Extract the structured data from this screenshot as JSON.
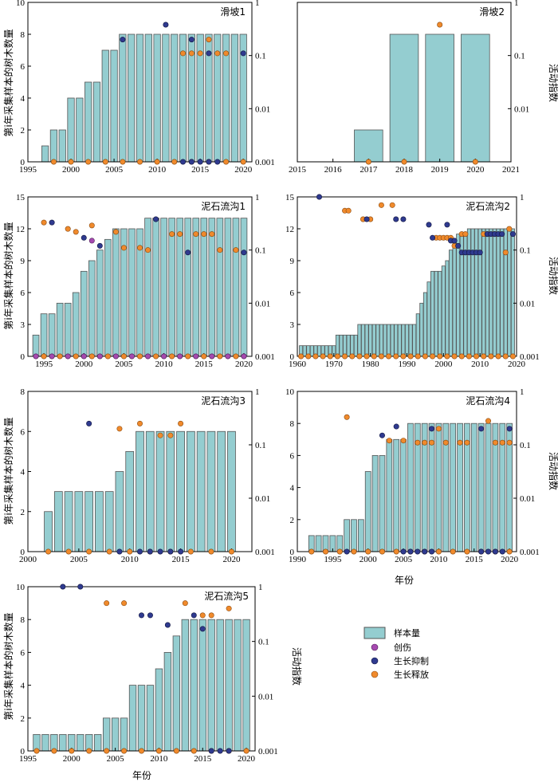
{
  "figure": {
    "y_left_label": "第i年采集样本的树木数量",
    "y_right_label": "活动指数",
    "x_label": "年份",
    "legend": {
      "sample_label": "样本量",
      "injury_label": "创伤",
      "suppression_label": "生长抑制",
      "release_label": "生长释放"
    },
    "colors": {
      "bar_fill": "#94cdd0",
      "bar_stroke": "#555555",
      "injury": "#a64ab0",
      "suppression": "#2f3a8f",
      "release": "#f08a2c"
    }
  },
  "chart_data": [
    {
      "type": "bar",
      "title": "滑坡1",
      "xlim": [
        1995,
        2021
      ],
      "xticks": [
        1995,
        2000,
        2005,
        2010,
        2015,
        2020
      ],
      "ylim": [
        0,
        10
      ],
      "yticks": [
        0,
        2,
        4,
        6,
        8,
        10
      ],
      "y2_log": [
        0.001,
        1
      ],
      "y2ticks": [
        "0.001",
        "0.01",
        "0.1",
        "1"
      ],
      "bar_x": [
        1997,
        1998,
        1999,
        2000,
        2001,
        2002,
        2003,
        2004,
        2005,
        2006,
        2007,
        2008,
        2009,
        2010,
        2011,
        2012,
        2013,
        2014,
        2015,
        2016,
        2017,
        2018,
        2019,
        2020
      ],
      "bar_values": [
        1,
        2,
        2,
        4,
        4,
        5,
        5,
        7,
        7,
        8,
        8,
        8,
        8,
        8,
        8,
        8,
        8,
        8,
        8,
        8,
        8,
        8,
        8,
        8
      ],
      "suppression": [
        [
          2006,
          0.2
        ],
        [
          2011,
          0.38
        ],
        [
          2014,
          0.2
        ],
        [
          2016,
          0.11
        ],
        [
          2020,
          0.11
        ]
      ],
      "release": [
        [
          2013,
          0.11
        ],
        [
          2014,
          0.11
        ],
        [
          2015,
          0.11
        ],
        [
          2016,
          0.2
        ],
        [
          2017,
          0.11
        ],
        [
          2018,
          0.11
        ]
      ],
      "baseline": {
        "release": [
          1998,
          2000,
          2002,
          2004,
          2006,
          2008,
          2010,
          2012,
          2014,
          2016,
          2018,
          2020
        ],
        "suppression": [
          2013,
          2014,
          2015,
          2016,
          2017
        ]
      }
    },
    {
      "type": "bar",
      "title": "滑坡2",
      "xlim": [
        2015,
        2021
      ],
      "xticks": [
        2015,
        2016,
        2017,
        2018,
        2019,
        2020,
        2021
      ],
      "ylim": [
        0,
        10
      ],
      "yticks": [],
      "y2_log": [
        0.001,
        1
      ],
      "y2ticks": [
        "0.01",
        "0.1",
        "1"
      ],
      "bar_x": [
        2017,
        2018,
        2019,
        2020
      ],
      "bar_values": [
        2,
        8,
        8,
        8
      ],
      "suppression": [],
      "release": [
        [
          2019,
          0.38
        ]
      ],
      "baseline": {
        "release": [
          2017,
          2018,
          2020
        ],
        "suppression": []
      }
    },
    {
      "type": "bar",
      "title": "泥石流沟1",
      "xlim": [
        1993,
        2021
      ],
      "xticks": [
        1995,
        2000,
        2005,
        2010,
        2015,
        2020
      ],
      "ylim": [
        0,
        15
      ],
      "yticks": [
        0,
        3,
        6,
        9,
        12,
        15
      ],
      "y2_log": [
        0.001,
        1
      ],
      "y2ticks": [
        "0.001",
        "0.01",
        "0.1",
        "1"
      ],
      "bar_x": [
        1994,
        1995,
        1996,
        1997,
        1998,
        1999,
        2000,
        2001,
        2002,
        2003,
        2004,
        2005,
        2006,
        2007,
        2008,
        2009,
        2010,
        2011,
        2012,
        2013,
        2014,
        2015,
        2016,
        2017,
        2018,
        2019,
        2020
      ],
      "bar_values": [
        2,
        4,
        4,
        5,
        5,
        6,
        8,
        9,
        10,
        11,
        12,
        12,
        12,
        12,
        13,
        13,
        13,
        13,
        13,
        13,
        13,
        13,
        13,
        13,
        13,
        13,
        13
      ],
      "injury": [
        [
          2001,
          0.15
        ]
      ],
      "suppression": [
        [
          1996,
          0.33
        ],
        [
          2000,
          0.17
        ],
        [
          2002,
          0.12
        ],
        [
          2009,
          0.38
        ],
        [
          2013,
          0.09
        ],
        [
          2020,
          0.09
        ]
      ],
      "release": [
        [
          1995,
          0.33
        ],
        [
          1998,
          0.25
        ],
        [
          1999,
          0.22
        ],
        [
          2001,
          0.29
        ],
        [
          2004,
          0.22
        ],
        [
          2005,
          0.11
        ],
        [
          2007,
          0.11
        ],
        [
          2008,
          0.1
        ],
        [
          2011,
          0.2
        ],
        [
          2012,
          0.2
        ],
        [
          2014,
          0.2
        ],
        [
          2015,
          0.2
        ],
        [
          2016,
          0.2
        ],
        [
          2017,
          0.1
        ],
        [
          2019,
          0.1
        ]
      ],
      "baseline": {
        "release": [
          1995,
          1997,
          1999,
          2001,
          2003,
          2005,
          2007,
          2009,
          2011,
          2013,
          2015,
          2017,
          2019
        ],
        "suppression": [],
        "injury": [
          1994,
          1996,
          1998,
          2000,
          2002,
          2004,
          2006,
          2008,
          2010,
          2012,
          2014,
          2016,
          2018,
          2020
        ]
      }
    },
    {
      "type": "bar",
      "title": "泥石流沟2",
      "xlim": [
        1960,
        2020
      ],
      "xticks": [
        1960,
        1970,
        1980,
        1990,
        2000,
        2010,
        2020
      ],
      "ylim": [
        0,
        15
      ],
      "yticks": [
        0,
        3,
        6,
        9,
        12,
        15
      ],
      "y2_log": [
        0.001,
        1
      ],
      "y2ticks": [
        "0.001",
        "0.01",
        "0.1",
        "1"
      ],
      "bar_steps": [
        [
          1961,
          1970,
          1
        ],
        [
          1971,
          1976,
          2
        ],
        [
          1977,
          1992,
          3
        ],
        [
          1993,
          1993,
          4
        ],
        [
          1994,
          1994,
          5
        ],
        [
          1995,
          1995,
          6
        ],
        [
          1996,
          1996,
          7
        ],
        [
          1997,
          1999,
          8
        ],
        [
          2000,
          2000,
          8.5
        ],
        [
          2001,
          2001,
          9
        ],
        [
          2002,
          2002,
          10
        ],
        [
          2003,
          2003,
          11
        ],
        [
          2004,
          2006,
          11.5
        ],
        [
          2007,
          2019,
          12
        ]
      ],
      "suppression": [
        [
          1966,
          1.0
        ],
        [
          1979,
          0.38
        ],
        [
          1987,
          0.38
        ],
        [
          1989,
          0.38
        ],
        [
          1996,
          0.3
        ],
        [
          1997,
          0.17
        ],
        [
          2001,
          0.3
        ],
        [
          2002,
          0.15
        ],
        [
          2003,
          0.15
        ],
        [
          2004,
          0.12
        ],
        [
          2005,
          0.09
        ],
        [
          2006,
          0.09
        ],
        [
          2007,
          0.09
        ],
        [
          2008,
          0.09
        ],
        [
          2009,
          0.09
        ],
        [
          2010,
          0.09
        ],
        [
          2012,
          0.2
        ],
        [
          2013,
          0.2
        ],
        [
          2014,
          0.2
        ],
        [
          2015,
          0.2
        ],
        [
          2016,
          0.2
        ],
        [
          2019,
          0.2
        ]
      ],
      "release": [
        [
          1973,
          0.55
        ],
        [
          1974,
          0.55
        ],
        [
          1978,
          0.38
        ],
        [
          1980,
          0.38
        ],
        [
          1983,
          0.7
        ],
        [
          1986,
          0.7
        ],
        [
          1998,
          0.17
        ],
        [
          1999,
          0.17
        ],
        [
          2000,
          0.17
        ],
        [
          2001,
          0.17
        ],
        [
          2002,
          0.17
        ],
        [
          2003,
          0.12
        ],
        [
          2005,
          0.2
        ],
        [
          2006,
          0.2
        ],
        [
          2011,
          0.2
        ],
        [
          2012,
          0.2
        ],
        [
          2014,
          0.2
        ],
        [
          2017,
          0.09
        ],
        [
          2018,
          0.25
        ]
      ],
      "baseline": {
        "release": [
          1961,
          1963,
          1965,
          1967,
          1969,
          1971,
          1973,
          1975,
          1977,
          1979,
          1981,
          1983,
          1985,
          1987,
          1989,
          1991,
          1993,
          1995,
          1997,
          1999,
          2001,
          2003,
          2005,
          2007,
          2009,
          2011,
          2013,
          2015,
          2017,
          2019
        ],
        "suppression": []
      }
    },
    {
      "type": "bar",
      "title": "泥石流沟3",
      "xlim": [
        2000,
        2022
      ],
      "xticks": [
        2000,
        2005,
        2010,
        2015,
        2020
      ],
      "ylim": [
        0,
        8
      ],
      "yticks": [
        0,
        2,
        4,
        6,
        8
      ],
      "y2_log": [
        0.001,
        1
      ],
      "y2ticks": [
        "0.001",
        "0.01",
        "0.1",
        "1"
      ],
      "bar_x": [
        2002,
        2003,
        2004,
        2005,
        2006,
        2007,
        2008,
        2009,
        2010,
        2011,
        2012,
        2013,
        2014,
        2015,
        2016,
        2017,
        2018,
        2019,
        2020
      ],
      "bar_values": [
        2,
        3,
        3,
        3,
        3,
        3,
        3,
        4,
        5,
        6,
        6,
        6,
        6,
        6,
        6,
        6,
        6,
        6,
        6
      ],
      "suppression": [
        [
          2006,
          0.25
        ]
      ],
      "release": [
        [
          2009,
          0.2
        ],
        [
          2011,
          0.25
        ],
        [
          2013,
          0.15
        ],
        [
          2014,
          0.15
        ],
        [
          2015,
          0.25
        ]
      ],
      "baseline": {
        "release": [
          2002,
          2004,
          2006,
          2008,
          2010,
          2012,
          2014,
          2016,
          2018,
          2020
        ],
        "suppression": [
          2009,
          2011,
          2012,
          2013,
          2014,
          2015
        ]
      }
    },
    {
      "type": "bar",
      "title": "泥石流沟4",
      "xlim": [
        1990,
        2021
      ],
      "xticks": [
        1990,
        1995,
        2000,
        2005,
        2010,
        2015,
        2020
      ],
      "ylim": [
        0,
        10
      ],
      "yticks": [
        0,
        2,
        4,
        6,
        8,
        10
      ],
      "y2_log": [
        0.001,
        1
      ],
      "y2ticks": [
        "0.001",
        "0.01",
        "0.1",
        "1"
      ],
      "bar_x": [
        1992,
        1993,
        1994,
        1995,
        1996,
        1997,
        1998,
        1999,
        2000,
        2001,
        2002,
        2003,
        2004,
        2005,
        2006,
        2007,
        2008,
        2009,
        2010,
        2011,
        2012,
        2013,
        2014,
        2015,
        2016,
        2017,
        2018,
        2019,
        2020
      ],
      "bar_values": [
        1,
        1,
        1,
        1,
        1,
        2,
        2,
        2,
        5,
        6,
        6,
        7,
        7,
        7,
        8,
        8,
        8,
        8,
        8,
        8,
        8,
        8,
        8,
        8,
        8,
        8,
        8,
        8,
        8
      ],
      "suppression": [
        [
          2002,
          0.15
        ],
        [
          2004,
          0.22
        ],
        [
          2009,
          0.2
        ],
        [
          2016,
          0.2
        ],
        [
          2020,
          0.2
        ]
      ],
      "release": [
        [
          1997,
          0.33
        ],
        [
          2003,
          0.12
        ],
        [
          2005,
          0.12
        ],
        [
          2007,
          0.11
        ],
        [
          2008,
          0.11
        ],
        [
          2009,
          0.11
        ],
        [
          2010,
          0.2
        ],
        [
          2011,
          0.11
        ],
        [
          2013,
          0.11
        ],
        [
          2014,
          0.11
        ],
        [
          2017,
          0.28
        ],
        [
          2018,
          0.11
        ],
        [
          2019,
          0.11
        ],
        [
          2020,
          0.11
        ]
      ],
      "baseline": {
        "release": [
          1992,
          1994,
          1996,
          1998,
          2000,
          2002,
          2004,
          2006,
          2008,
          2010,
          2012,
          2014,
          2016,
          2018,
          2020
        ],
        "suppression": [
          1997,
          2005,
          2006,
          2007,
          2008,
          2009,
          2016,
          2017,
          2018,
          2019
        ]
      }
    },
    {
      "type": "bar",
      "title": "泥石流沟5",
      "xlim": [
        1995,
        2021
      ],
      "xticks": [
        1995,
        2000,
        2005,
        2010,
        2015,
        2020
      ],
      "ylim": [
        0,
        10
      ],
      "yticks": [
        0,
        2,
        4,
        6,
        8,
        10
      ],
      "y2_log": [
        0.001,
        1
      ],
      "y2ticks": [
        "0.001",
        "0.01",
        "0.1",
        "1"
      ],
      "bar_x": [
        1996,
        1997,
        1998,
        1999,
        2000,
        2001,
        2002,
        2003,
        2004,
        2005,
        2006,
        2007,
        2008,
        2009,
        2010,
        2011,
        2012,
        2013,
        2014,
        2015,
        2016,
        2017,
        2018,
        2019,
        2020
      ],
      "bar_values": [
        1,
        1,
        1,
        1,
        1,
        1,
        1,
        1,
        2,
        2,
        2,
        4,
        4,
        4,
        5,
        6,
        7,
        8,
        8,
        8,
        8,
        8,
        8,
        8,
        8
      ],
      "suppression": [
        [
          1999,
          1.0
        ],
        [
          2001,
          1.0
        ],
        [
          2008,
          0.3
        ],
        [
          2009,
          0.3
        ],
        [
          2011,
          0.2
        ],
        [
          2014,
          0.3
        ],
        [
          2015,
          0.17
        ]
      ],
      "release": [
        [
          2004,
          0.5
        ],
        [
          2006,
          0.5
        ],
        [
          2013,
          0.5
        ],
        [
          2015,
          0.3
        ],
        [
          2016,
          0.3
        ],
        [
          2018,
          0.4
        ]
      ],
      "baseline": {
        "release": [
          1996,
          1998,
          2000,
          2002,
          2004,
          2006,
          2008,
          2010,
          2012,
          2014,
          2016,
          2018,
          2020
        ],
        "suppression": [
          2016,
          2017,
          2018
        ]
      }
    }
  ]
}
